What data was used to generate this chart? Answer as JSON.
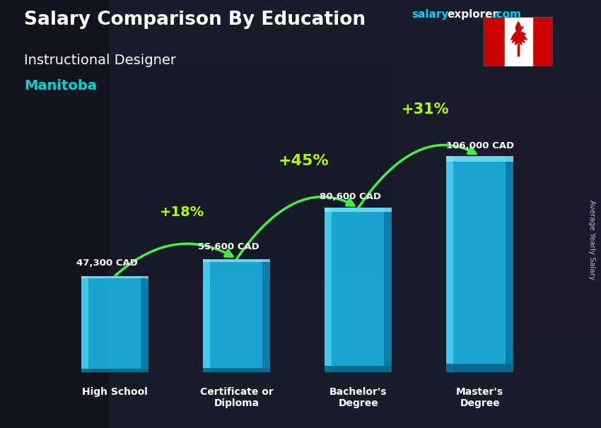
{
  "title_salary": "Salary Comparison By Education",
  "subtitle_job": "Instructional Designer",
  "subtitle_location": "Manitoba",
  "watermark_salary": "salary",
  "watermark_explorer": "explorer",
  "watermark_com": ".com",
  "ylabel": "Average Yearly Salary",
  "categories": [
    "High School",
    "Certificate or\nDiploma",
    "Bachelor's\nDegree",
    "Master's\nDegree"
  ],
  "values": [
    47300,
    55600,
    80600,
    106000
  ],
  "labels": [
    "47,300 CAD",
    "55,600 CAD",
    "80,600 CAD",
    "106,000 CAD"
  ],
  "pct_changes": [
    "+18%",
    "+45%",
    "+31%"
  ],
  "bar_color_main": "#1ab8e8",
  "bar_color_light": "#4dd4f8",
  "bar_color_dark": "#0090bb",
  "bar_color_side": "#0a7aa0",
  "background_color": "#1a1a2e",
  "title_color": "#ffffff",
  "subtitle_job_color": "#ffffff",
  "subtitle_loc_color": "#00d4d4",
  "label_color": "#ffffff",
  "pct_color": "#aaff00",
  "arrow_color": "#44ee44",
  "category_color": "#ffffff",
  "watermark_salary_color": "#00cfff",
  "watermark_explorer_color": "#ffffff",
  "right_label_color": "#bbbbbb",
  "ylim_max": 130000,
  "bar_width": 0.55,
  "fig_width": 8.5,
  "fig_height": 6.06,
  "dpi": 100
}
